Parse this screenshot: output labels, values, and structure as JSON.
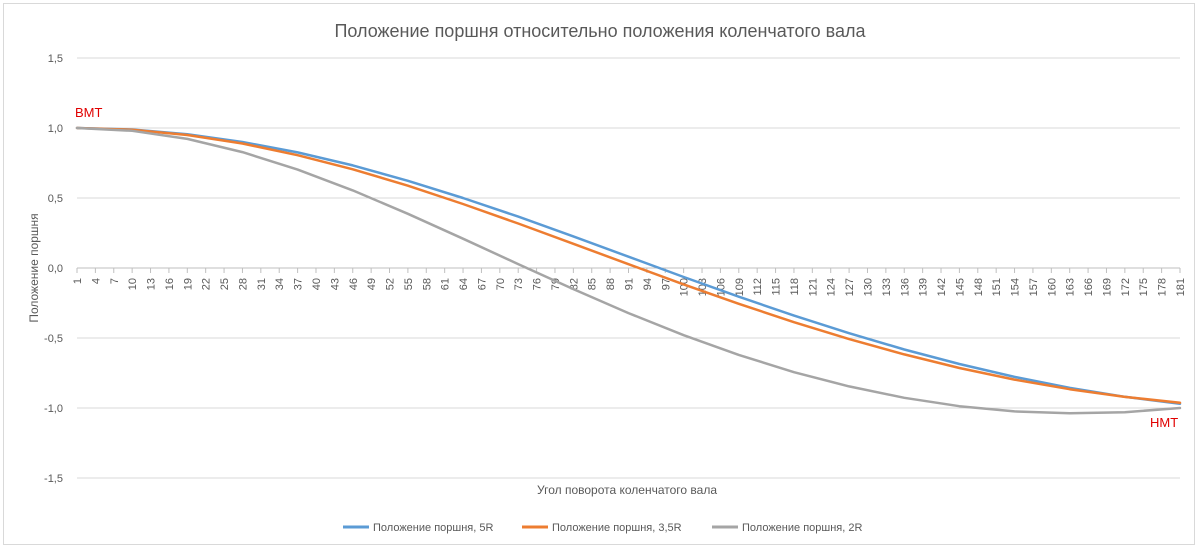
{
  "chart_data": {
    "type": "line",
    "title": "Положение поршня относительно положения коленчатого вала",
    "xlabel": "Угол поворота коленчатого вала",
    "ylabel": "Положение поршня",
    "ylim": [
      -1.5,
      1.5
    ],
    "y_ticks": [
      "1,5",
      "1,0",
      "0,5",
      "0,0",
      "-0,5",
      "-1,0",
      "-1,5"
    ],
    "y_tick_values": [
      1.5,
      1.0,
      0.5,
      0.0,
      -0.5,
      -1.0,
      -1.5
    ],
    "x_range": [
      1,
      181
    ],
    "x_ticks": [
      "1",
      "4",
      "7",
      "10",
      "13",
      "16",
      "19",
      "22",
      "25",
      "28",
      "31",
      "34",
      "37",
      "40",
      "43",
      "46",
      "49",
      "52",
      "55",
      "58",
      "61",
      "64",
      "67",
      "70",
      "73",
      "76",
      "79",
      "82",
      "85",
      "88",
      "91",
      "94",
      "97",
      "100",
      "103",
      "106",
      "109",
      "112",
      "115",
      "118",
      "121",
      "124",
      "127",
      "130",
      "133",
      "136",
      "139",
      "142",
      "145",
      "148",
      "151",
      "154",
      "157",
      "160",
      "163",
      "166",
      "169",
      "172",
      "175",
      "178",
      "181"
    ],
    "grid": true,
    "legend_position": "bottom",
    "annotations": [
      {
        "text": "ВМТ",
        "x": 1,
        "y": 1.0
      },
      {
        "text": "НМТ",
        "x": 181,
        "y": -1.0
      }
    ],
    "x": [
      1,
      10,
      19,
      28,
      37,
      46,
      55,
      64,
      73,
      82,
      91,
      100,
      109,
      118,
      127,
      136,
      145,
      154,
      163,
      172,
      181
    ],
    "series": [
      {
        "name": "Положение поршня, 5R",
        "color": "#5b9bd5",
        "values": [
          1.0,
          0.989,
          0.955,
          0.9,
          0.826,
          0.733,
          0.623,
          0.5,
          0.367,
          0.226,
          0.081,
          -0.064,
          -0.205,
          -0.34,
          -0.466,
          -0.582,
          -0.686,
          -0.778,
          -0.856,
          -0.92,
          -0.969
        ]
      },
      {
        "name": "Положение поршня, 3,5R",
        "color": "#ed7d31",
        "values": [
          1.0,
          0.987,
          0.95,
          0.889,
          0.806,
          0.705,
          0.588,
          0.457,
          0.318,
          0.173,
          0.027,
          -0.117,
          -0.256,
          -0.387,
          -0.508,
          -0.617,
          -0.714,
          -0.797,
          -0.866,
          -0.921,
          -0.962
        ]
      },
      {
        "name": "Положение поршня, 2R",
        "color": "#a5a5a5",
        "values": [
          1.0,
          0.98,
          0.922,
          0.828,
          0.703,
          0.554,
          0.387,
          0.209,
          0.028,
          -0.151,
          -0.322,
          -0.48,
          -0.621,
          -0.744,
          -0.846,
          -0.927,
          -0.987,
          -1.024,
          -1.038,
          -1.03,
          -1.0
        ]
      }
    ]
  }
}
